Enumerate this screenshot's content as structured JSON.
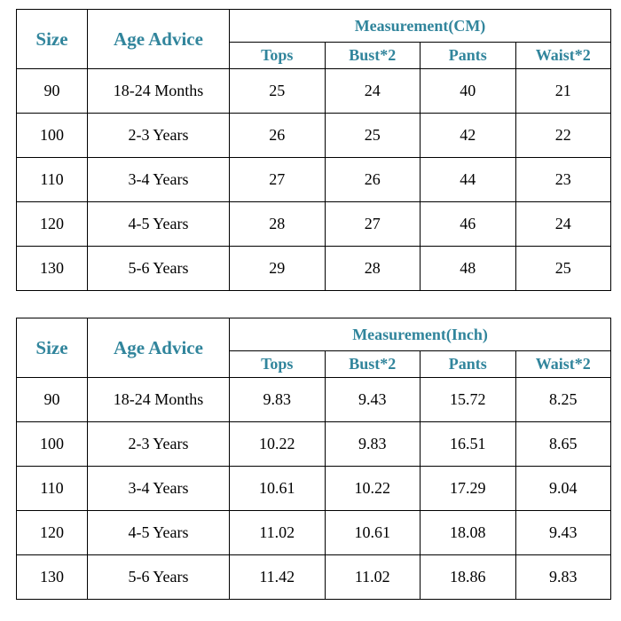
{
  "colors": {
    "header_text": "#31859C",
    "border": "#000000",
    "background": "#FFFFFF"
  },
  "chart_data": [
    {
      "type": "table",
      "title": "Measurement(CM)",
      "columns": [
        "Size",
        "Age Advice",
        "Tops",
        "Bust*2",
        "Pants",
        "Waist*2"
      ],
      "rows": [
        [
          "90",
          "18-24 Months",
          "25",
          "24",
          "40",
          "21"
        ],
        [
          "100",
          "2-3 Years",
          "26",
          "25",
          "42",
          "22"
        ],
        [
          "110",
          "3-4 Years",
          "27",
          "26",
          "44",
          "23"
        ],
        [
          "120",
          "4-5 Years",
          "28",
          "27",
          "46",
          "24"
        ],
        [
          "130",
          "5-6 Years",
          "29",
          "28",
          "48",
          "25"
        ]
      ]
    },
    {
      "type": "table",
      "title": "Measurement(Inch)",
      "columns": [
        "Size",
        "Age Advice",
        "Tops",
        "Bust*2",
        "Pants",
        "Waist*2"
      ],
      "rows": [
        [
          "90",
          "18-24 Months",
          "9.83",
          "9.43",
          "15.72",
          "8.25"
        ],
        [
          "100",
          "2-3 Years",
          "10.22",
          "9.83",
          "16.51",
          "8.65"
        ],
        [
          "110",
          "3-4 Years",
          "10.61",
          "10.22",
          "17.29",
          "9.04"
        ],
        [
          "120",
          "4-5 Years",
          "11.02",
          "10.61",
          "18.08",
          "9.43"
        ],
        [
          "130",
          "5-6 Years",
          "11.42",
          "11.02",
          "18.86",
          "9.83"
        ]
      ]
    }
  ]
}
